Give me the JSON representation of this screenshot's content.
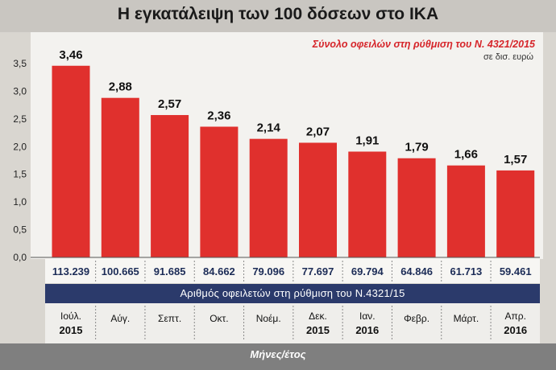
{
  "title": "Η εγκατάλειψη των 100 δόσεων στο ΙΚΑ",
  "colors": {
    "bar": "#e0302d",
    "navy": "#2b3a6b",
    "legend": "#d6252a",
    "axis_band": "#7f7f7f"
  },
  "chart_data": {
    "type": "bar",
    "series": [
      {
        "name": "Σύνολο οφειλών στη ρύθμιση του Ν. 4321/2015",
        "values": [
          3.46,
          2.88,
          2.57,
          2.36,
          2.14,
          2.07,
          1.91,
          1.79,
          1.66,
          1.57
        ],
        "value_labels": [
          "3,46",
          "2,88",
          "2,57",
          "2,36",
          "2,14",
          "2,07",
          "1,91",
          "1,79",
          "1,66",
          "1,57"
        ]
      }
    ],
    "unit_note": "σε δισ. ευρώ",
    "categories": [
      {
        "month": "Ιούλ.",
        "year": "2015"
      },
      {
        "month": "Αύγ.",
        "year": ""
      },
      {
        "month": "Σεπτ.",
        "year": ""
      },
      {
        "month": "Οκτ.",
        "year": ""
      },
      {
        "month": "Νοέμ.",
        "year": ""
      },
      {
        "month": "Δεκ.",
        "year": "2015"
      },
      {
        "month": "Ιαν.",
        "year": "2016"
      },
      {
        "month": "Φεβρ.",
        "year": ""
      },
      {
        "month": "Μάρτ.",
        "year": ""
      },
      {
        "month": "Απρ.",
        "year": "2016"
      }
    ],
    "debtors": [
      "113.239",
      "100.665",
      "91.685",
      "84.662",
      "79.096",
      "77.697",
      "69.794",
      "64.846",
      "61.713",
      "59.461"
    ],
    "debtors_label": "Αριθμός οφειλετών στη ρύθμιση του Ν.4321/15",
    "xlabel": "Μήνες/έτος",
    "ylim": [
      0,
      3.5
    ],
    "yticks": [
      "0,0",
      "0,5",
      "1,0",
      "1,5",
      "2,0",
      "2,5",
      "3,0",
      "3,5"
    ],
    "grid": false
  }
}
